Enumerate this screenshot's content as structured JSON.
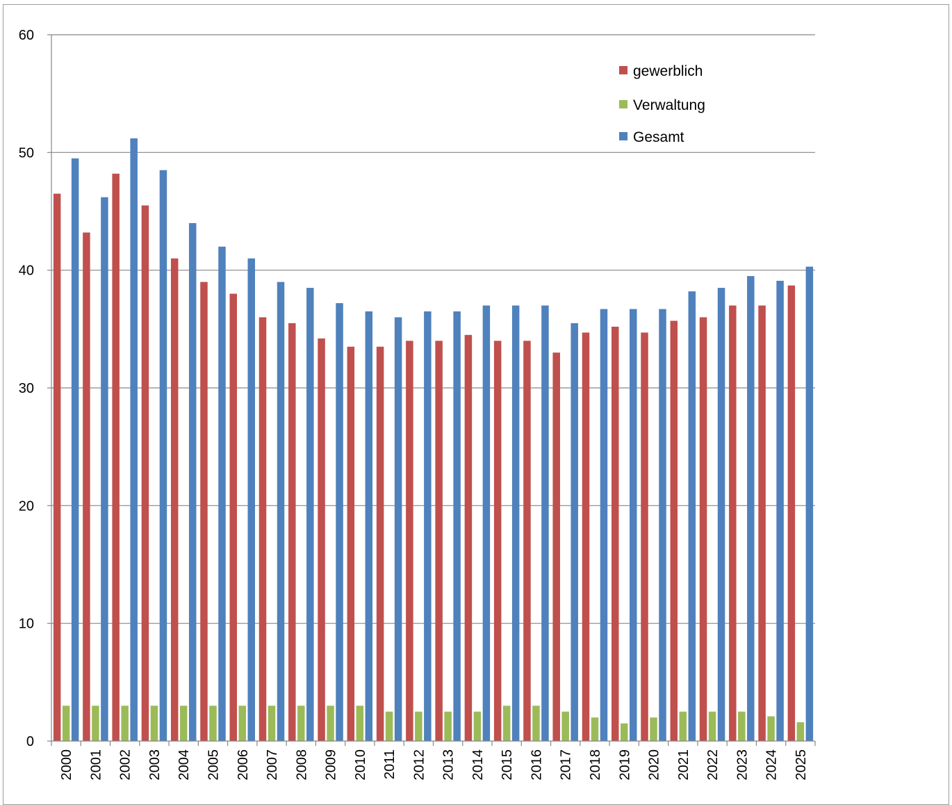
{
  "chart_data": {
    "type": "bar",
    "categories": [
      "2000",
      "2001",
      "2002",
      "2003",
      "2004",
      "2005",
      "2006",
      "2007",
      "2008",
      "2009",
      "2010",
      "2011",
      "2012",
      "2013",
      "2014",
      "2015",
      "2016",
      "2017",
      "2018",
      "2019",
      "2020",
      "2021",
      "2022",
      "2023",
      "2024",
      "2025"
    ],
    "series": [
      {
        "name": "gewerblich",
        "color": "#c0504d",
        "values": [
          46.5,
          43.2,
          48.2,
          45.5,
          41.0,
          39.0,
          38.0,
          36.0,
          35.5,
          34.2,
          33.5,
          33.5,
          34.0,
          34.0,
          34.5,
          34.0,
          34.0,
          33.0,
          34.7,
          35.2,
          34.7,
          35.7,
          36.0,
          37.0,
          37.0,
          38.7
        ]
      },
      {
        "name": "Verwaltung",
        "color": "#9bbb59",
        "values": [
          3.0,
          3.0,
          3.0,
          3.0,
          3.0,
          3.0,
          3.0,
          3.0,
          3.0,
          3.0,
          3.0,
          2.5,
          2.5,
          2.5,
          2.5,
          3.0,
          3.0,
          2.5,
          2.0,
          1.5,
          2.0,
          2.5,
          2.5,
          2.5,
          2.1,
          1.6
        ]
      },
      {
        "name": "Gesamt",
        "color": "#4f81bd",
        "values": [
          49.5,
          46.2,
          51.2,
          48.5,
          44.0,
          42.0,
          41.0,
          39.0,
          38.5,
          37.2,
          36.5,
          36.0,
          36.5,
          36.5,
          37.0,
          37.0,
          37.0,
          35.5,
          36.7,
          36.7,
          36.7,
          38.2,
          38.5,
          39.5,
          39.1,
          40.3
        ]
      }
    ],
    "yticks": [
      "0",
      "10",
      "20",
      "30",
      "40",
      "50",
      "60"
    ],
    "ylim": [
      0,
      60
    ],
    "grid": true,
    "legend_position": "top-right"
  }
}
